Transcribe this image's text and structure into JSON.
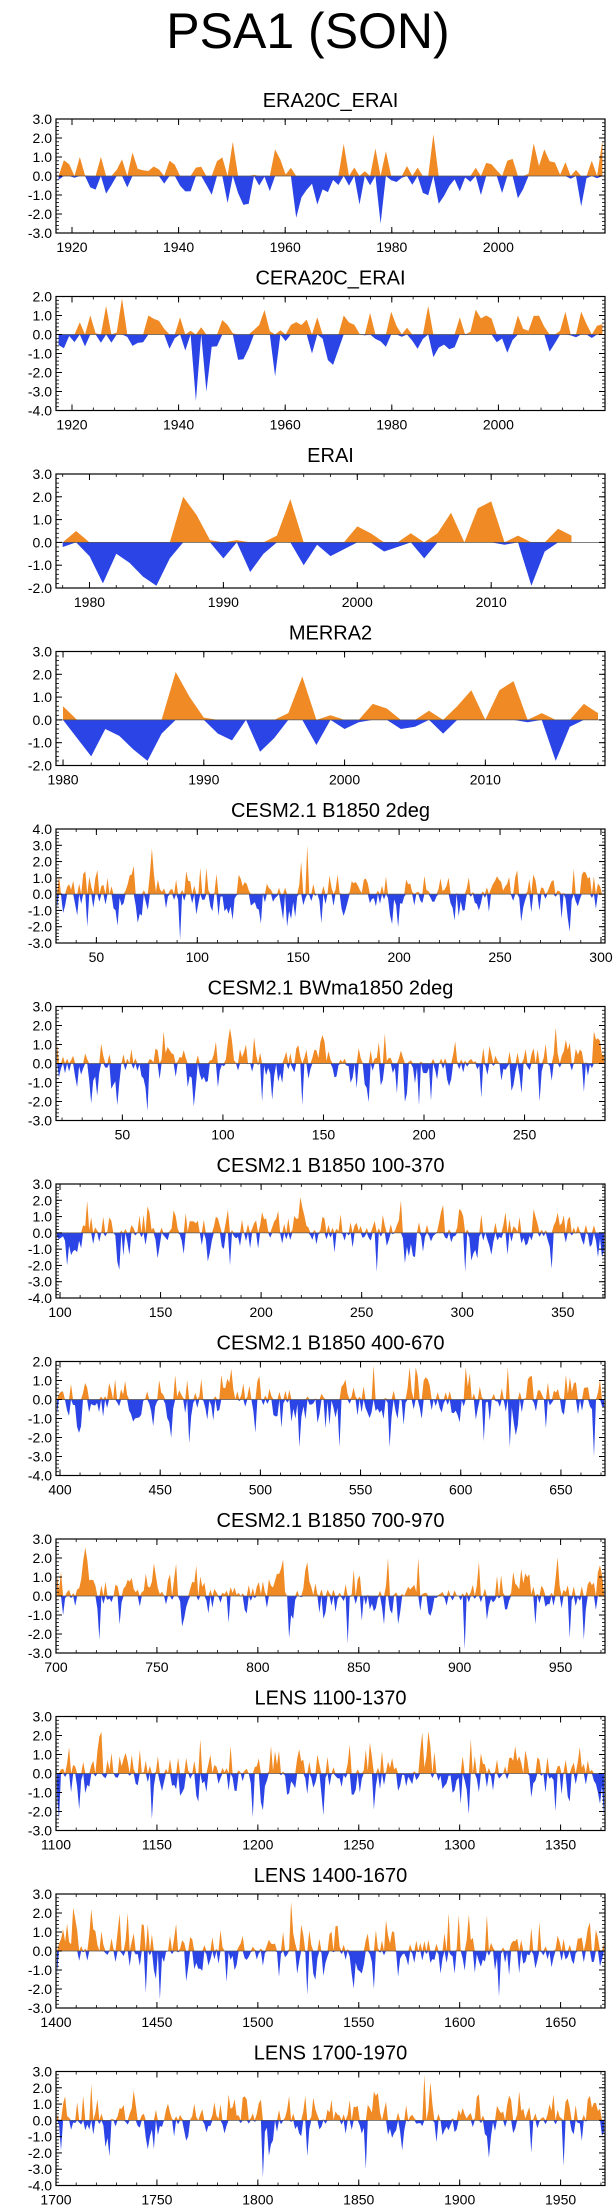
{
  "figure_title": "PSA1 (SON)",
  "colors": {
    "positive": "#F08A24",
    "negative": "#2B44E6",
    "axis": "#000000"
  },
  "chart_data": [
    {
      "type": "area",
      "title": "ERA20C_ERAI",
      "ylim": [
        -3.0,
        3.0
      ],
      "yticks": [
        "3.0",
        "2.0",
        "1.0",
        "0.0",
        "-1.0",
        "-2.0",
        "-3.0"
      ],
      "xlim": [
        1917,
        2020
      ],
      "xticks": [
        1920,
        1940,
        1960,
        1980,
        2000
      ],
      "random": {
        "seed": 11,
        "n": 104,
        "amp": 0.7
      },
      "anchors": [
        [
          1921,
          1.0
        ],
        [
          1925,
          1.0
        ],
        [
          1930,
          -0.6
        ],
        [
          1937,
          -0.4
        ],
        [
          1942,
          -0.8
        ],
        [
          1950,
          1.8
        ],
        [
          1958,
          1.4
        ],
        [
          1962,
          -2.2
        ],
        [
          1966,
          -1.5
        ],
        [
          1971,
          1.7
        ],
        [
          1974,
          -1.5
        ],
        [
          1978,
          -2.5
        ],
        [
          1988,
          2.2
        ],
        [
          1993,
          -0.8
        ],
        [
          1997,
          -1.0
        ],
        [
          2003,
          0.9
        ],
        [
          2009,
          1.4
        ],
        [
          2016,
          -1.6
        ],
        [
          2018,
          0.8
        ]
      ]
    },
    {
      "type": "area",
      "title": "CERA20C_ERAI",
      "ylim": [
        -4.0,
        2.0
      ],
      "yticks": [
        "2.0",
        "1.0",
        "0.0",
        "-1.0",
        "-2.0",
        "-3.0",
        "-4.0"
      ],
      "xlim": [
        1917,
        2020
      ],
      "xticks": [
        1920,
        1940,
        1960,
        1980,
        2000
      ],
      "random": {
        "seed": 23,
        "n": 104,
        "amp": 0.5
      },
      "anchors": [
        [
          1920,
          -0.4
        ],
        [
          1923,
          1.0
        ],
        [
          1926,
          1.5
        ],
        [
          1929,
          1.9
        ],
        [
          1934,
          1.0
        ],
        [
          1937,
          0.3
        ],
        [
          1940,
          0.9
        ],
        [
          1943,
          -3.5
        ],
        [
          1945,
          -3.0
        ],
        [
          1949,
          0.5
        ],
        [
          1952,
          -1.3
        ],
        [
          1955,
          0.5
        ],
        [
          1958,
          -2.2
        ],
        [
          1963,
          0.5
        ],
        [
          1965,
          -1.0
        ],
        [
          1969,
          -1.6
        ],
        [
          1971,
          1.0
        ],
        [
          1980,
          1.2
        ],
        [
          1987,
          1.5
        ],
        [
          1993,
          0.9
        ],
        [
          1998,
          1.0
        ],
        [
          2004,
          1.0
        ],
        [
          2010,
          -0.9
        ],
        [
          2013,
          1.2
        ],
        [
          2016,
          1.2
        ]
      ]
    },
    {
      "type": "area",
      "title": "ERAI",
      "ylim": [
        -2.0,
        3.0
      ],
      "yticks": [
        "3.0",
        "2.0",
        "1.0",
        "0.0",
        "-1.0",
        "-2.0"
      ],
      "xlim": [
        1977.5,
        2018.5
      ],
      "xticks": [
        1980,
        1990,
        2000,
        2010
      ],
      "values": [
        -0.2,
        0.5,
        -0.6,
        -1.8,
        -0.5,
        -0.9,
        -1.5,
        -1.9,
        -0.7,
        2.0,
        1.2,
        0.1,
        -0.7,
        0.1,
        -1.3,
        -0.5,
        0.3,
        1.9,
        -1.0,
        -0.1,
        -0.6,
        -0.3,
        0.7,
        0.4,
        -0.4,
        -0.2,
        0.4,
        -0.7,
        0.4,
        1.3,
        0.0,
        1.5,
        1.8,
        -0.1,
        0.3,
        -1.9,
        -0.4,
        0.6,
        0.3
      ]
    },
    {
      "type": "area",
      "title": "MERRA2",
      "ylim": [
        -2.0,
        3.0
      ],
      "yticks": [
        "3.0",
        "2.0",
        "1.0",
        "0.0",
        "-1.0",
        "-2.0"
      ],
      "xlim": [
        1979.5,
        2018.5
      ],
      "xticks": [
        1980,
        1990,
        2000,
        2010
      ],
      "values": [
        0.6,
        -0.8,
        -1.6,
        -0.4,
        -0.7,
        -1.3,
        -1.8,
        -0.6,
        2.1,
        1.0,
        0.1,
        -0.6,
        -0.9,
        0.0,
        -1.4,
        -0.8,
        0.3,
        1.9,
        -1.1,
        0.2,
        -0.4,
        -0.1,
        0.7,
        0.5,
        -0.4,
        -0.3,
        0.4,
        -0.6,
        0.6,
        1.3,
        0.0,
        1.3,
        1.7,
        -0.1,
        0.3,
        -1.8,
        -0.3,
        0.7,
        0.3
      ]
    },
    {
      "type": "area",
      "title": "CESM2.1 B1850 2deg",
      "ylim": [
        -3.0,
        4.0
      ],
      "yticks": [
        "4.0",
        "3.0",
        "2.0",
        "1.0",
        "0.0",
        "-1.0",
        "-2.0",
        "-3.0"
      ],
      "xlim": [
        30,
        302
      ],
      "xticks": [
        50,
        100,
        150,
        200,
        250,
        300
      ],
      "random": {
        "seed": 37,
        "n": 272,
        "amp": 0.75
      },
      "anchors": [
        [
          46,
          -2.0
        ],
        [
          78,
          2.8
        ],
        [
          92,
          -2.8
        ],
        [
          132,
          -1.8
        ],
        [
          145,
          -2.0
        ],
        [
          152,
          2.0
        ],
        [
          155,
          3.0
        ],
        [
          170,
          1.2
        ],
        [
          228,
          -1.6
        ],
        [
          281,
          -1.5
        ]
      ]
    },
    {
      "type": "area",
      "title": "CESM2.1 BWma1850 2deg",
      "ylim": [
        -3.0,
        3.0
      ],
      "yticks": [
        "3.0",
        "2.0",
        "1.0",
        "0.0",
        "-1.0",
        "-2.0",
        "-3.0"
      ],
      "xlim": [
        17,
        290
      ],
      "xticks": [
        50,
        100,
        150,
        200,
        250
      ],
      "random": {
        "seed": 53,
        "n": 273,
        "amp": 0.75
      },
      "anchors": [
        [
          38,
          -1.7
        ],
        [
          48,
          -2.2
        ],
        [
          63,
          -2.5
        ],
        [
          120,
          -2.0
        ],
        [
          140,
          -2.2
        ],
        [
          198,
          -2.2
        ],
        [
          229,
          -1.8
        ],
        [
          258,
          -2.0
        ],
        [
          266,
          1.9
        ],
        [
          285,
          1.7
        ]
      ]
    },
    {
      "type": "area",
      "title": "CESM2.1 B1850 100-370",
      "ylim": [
        -4.0,
        3.0
      ],
      "yticks": [
        "3.0",
        "2.0",
        "1.0",
        "0.0",
        "-1.0",
        "-2.0",
        "-3.0",
        "-4.0"
      ],
      "xlim": [
        98,
        371
      ],
      "xticks": [
        100,
        150,
        200,
        250,
        300,
        350
      ],
      "random": {
        "seed": 71,
        "n": 273,
        "amp": 0.8
      },
      "anchors": [
        [
          104,
          -2.0
        ],
        [
          132,
          -1.4
        ],
        [
          162,
          -1.3
        ],
        [
          185,
          -2.0
        ],
        [
          220,
          2.2
        ],
        [
          258,
          -2.4
        ],
        [
          270,
          2.0
        ],
        [
          302,
          -2.4
        ],
        [
          345,
          -2.2
        ],
        [
          368,
          -1.5
        ]
      ]
    },
    {
      "type": "area",
      "title": "CESM2.1 B1850 400-670",
      "ylim": [
        -4.0,
        2.0
      ],
      "yticks": [
        "2.0",
        "1.0",
        "0.0",
        "-1.0",
        "-2.0",
        "-3.0",
        "-4.0"
      ],
      "xlim": [
        398,
        672
      ],
      "xticks": [
        400,
        450,
        500,
        550,
        600,
        650
      ],
      "random": {
        "seed": 89,
        "n": 274,
        "amp": 0.75
      },
      "anchors": [
        [
          456,
          -2.0
        ],
        [
          465,
          -2.3
        ],
        [
          520,
          -2.5
        ],
        [
          540,
          -2.5
        ],
        [
          557,
          1.8
        ],
        [
          565,
          -2.5
        ],
        [
          612,
          -2.2
        ],
        [
          625,
          -2.5
        ],
        [
          667,
          -3.0
        ]
      ]
    },
    {
      "type": "area",
      "title": "CESM2.1 B1850 700-970",
      "ylim": [
        -3.0,
        3.0
      ],
      "yticks": [
        "3.0",
        "2.0",
        "1.0",
        "0.0",
        "-1.0",
        "-2.0",
        "-3.0"
      ],
      "xlim": [
        700,
        972
      ],
      "xticks": [
        700,
        750,
        800,
        850,
        900,
        950
      ],
      "random": {
        "seed": 97,
        "n": 272,
        "amp": 0.75
      },
      "anchors": [
        [
          722,
          -2.3
        ],
        [
          732,
          -1.5
        ],
        [
          760,
          1.7
        ],
        [
          770,
          1.6
        ],
        [
          845,
          -2.5
        ],
        [
          865,
          2.0
        ],
        [
          880,
          2.0
        ],
        [
          903,
          -2.8
        ],
        [
          955,
          -2.2
        ],
        [
          962,
          -2.3
        ]
      ]
    },
    {
      "type": "area",
      "title": "LENS 1100-1370",
      "ylim": [
        -3.0,
        3.0
      ],
      "yticks": [
        "3.0",
        "2.0",
        "1.0",
        "0.0",
        "-1.0",
        "-2.0",
        "-3.0"
      ],
      "xlim": [
        1100,
        1372
      ],
      "xticks": [
        1100,
        1150,
        1200,
        1250,
        1300,
        1350
      ],
      "random": {
        "seed": 101,
        "n": 272,
        "amp": 0.75
      },
      "anchors": [
        [
          1102,
          -2.4
        ],
        [
          1148,
          -2.4
        ],
        [
          1172,
          1.8
        ],
        [
          1198,
          -2.3
        ],
        [
          1233,
          -2.2
        ],
        [
          1258,
          -1.9
        ],
        [
          1306,
          1.8
        ],
        [
          1348,
          -2.0
        ],
        [
          1370,
          -1.6
        ]
      ]
    },
    {
      "type": "area",
      "title": "LENS 1400-1670",
      "ylim": [
        -3.0,
        3.0
      ],
      "yticks": [
        "3.0",
        "2.0",
        "1.0",
        "0.0",
        "-1.0",
        "-2.0",
        "-3.0"
      ],
      "xlim": [
        1400,
        1672
      ],
      "xticks": [
        1400,
        1450,
        1500,
        1550,
        1600,
        1650
      ],
      "random": {
        "seed": 113,
        "n": 272,
        "amp": 0.75
      },
      "anchors": [
        [
          1418,
          2.2
        ],
        [
          1445,
          -2.2
        ],
        [
          1517,
          2.6
        ],
        [
          1525,
          -2.3
        ],
        [
          1558,
          -2.0
        ],
        [
          1595,
          2.0
        ],
        [
          1620,
          -2.4
        ],
        [
          1640,
          1.5
        ],
        [
          1665,
          1.5
        ],
        [
          1670,
          -0.8
        ]
      ]
    },
    {
      "type": "area",
      "title": "LENS 1700-1970",
      "ylim": [
        -4.0,
        3.0
      ],
      "yticks": [
        "3.0",
        "2.0",
        "1.0",
        "0.0",
        "-1.0",
        "-2.0",
        "-3.0",
        "-4.0"
      ],
      "xlim": [
        1700,
        1972
      ],
      "xticks": [
        1700,
        1750,
        1800,
        1850,
        1900,
        1950
      ],
      "random": {
        "seed": 127,
        "n": 272,
        "amp": 0.75
      },
      "anchors": [
        [
          1718,
          2.2
        ],
        [
          1727,
          -2.2
        ],
        [
          1803,
          -3.5
        ],
        [
          1825,
          -2.2
        ],
        [
          1854,
          -3.0
        ],
        [
          1883,
          2.8
        ],
        [
          1915,
          -2.3
        ],
        [
          1936,
          -2.0
        ],
        [
          1952,
          -2.8
        ],
        [
          1965,
          1.5
        ]
      ]
    }
  ]
}
